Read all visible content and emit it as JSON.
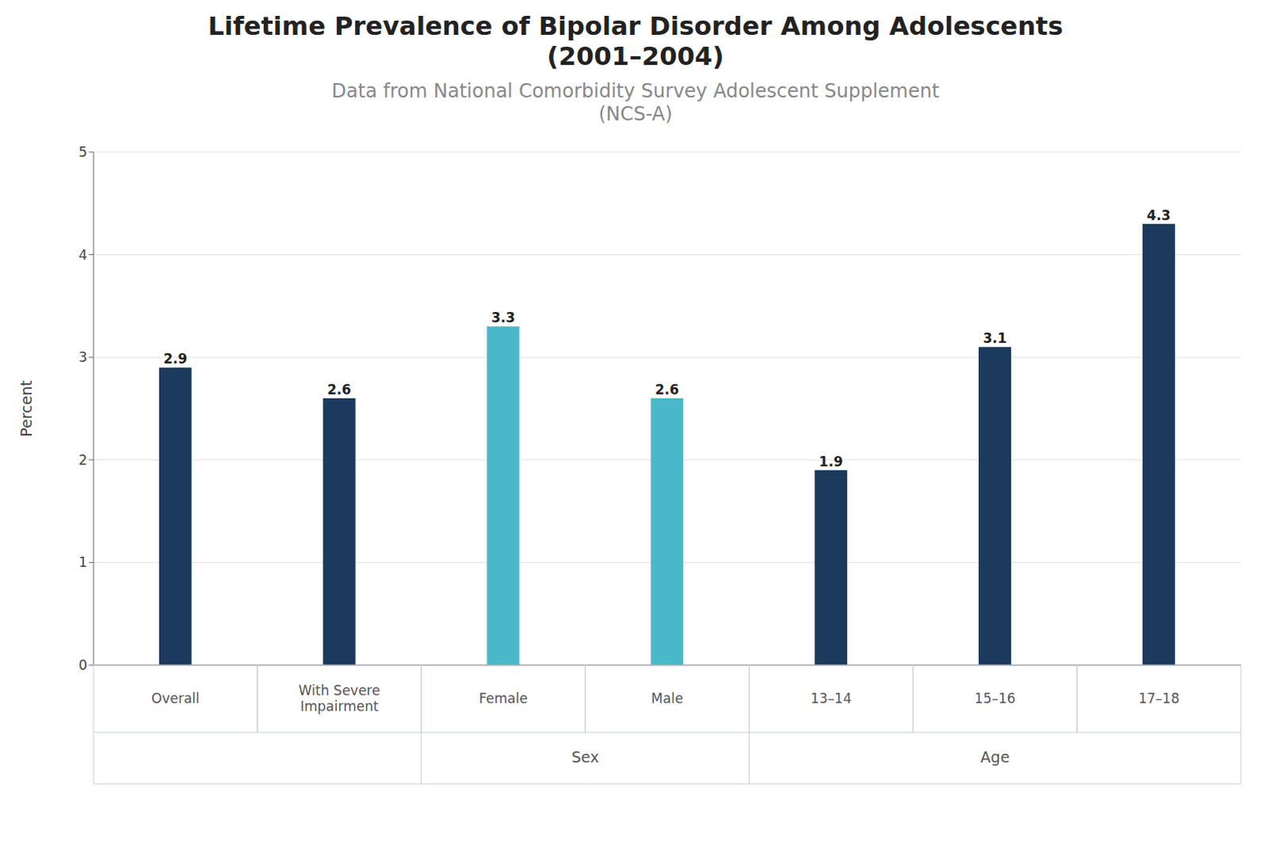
{
  "chart_data": {
    "type": "bar",
    "title": "Lifetime Prevalence of Bipolar Disorder Among Adolescents\n(2001–2004)",
    "subtitle": "Data from National Comorbidity Survey Adolescent Supplement\n(NCS-A)",
    "ylabel": "Percent",
    "categories": [
      "Overall",
      "With Severe\nImpairment",
      "Female",
      "Male",
      "13–14",
      "15–16",
      "17–18"
    ],
    "values": [
      2.9,
      2.6,
      3.3,
      2.6,
      1.9,
      3.1,
      4.3
    ],
    "colors": [
      "#1b3a5c",
      "#1b3a5c",
      "#4ab8c8",
      "#4ab8c8",
      "#1b3a5c",
      "#1b3a5c",
      "#1b3a5c"
    ],
    "ylim": [
      0,
      5
    ],
    "yticks": [
      0,
      1,
      2,
      3,
      4,
      5
    ],
    "grid": true,
    "data_labels": true,
    "annotations": [
      {
        "text": "Sex",
        "categories": [
          "Female",
          "Male"
        ]
      },
      {
        "text": "Age",
        "categories": [
          "13–14",
          "15–16",
          "17–18"
        ]
      }
    ]
  }
}
